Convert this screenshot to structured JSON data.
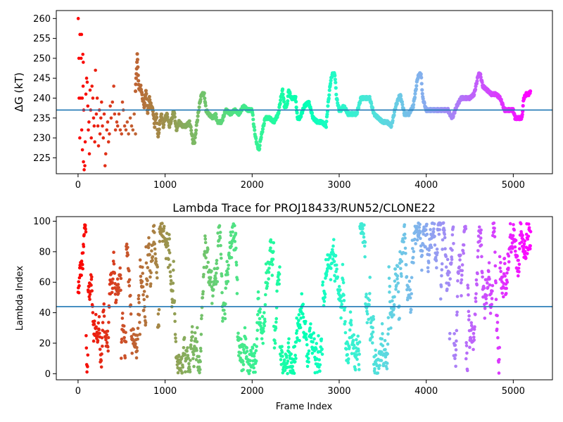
{
  "chart_data": [
    {
      "type": "scatter",
      "title": "",
      "xlabel": "",
      "ylabel": "ΔG (kT)",
      "xlim": [
        -250,
        5450
      ],
      "ylim": [
        221,
        262
      ],
      "xticks": [
        0,
        1000,
        2000,
        3000,
        4000,
        5000
      ],
      "yticks": [
        225,
        230,
        235,
        240,
        245,
        250,
        255,
        260
      ],
      "hline": 237,
      "hline_color": "#1f77b4",
      "colormap": "rainbow",
      "color_order": "reversed_by_frame",
      "grid": false,
      "x_max": 5200,
      "series": [
        {
          "kind": "scattered_points",
          "points": [
            [
              2,
              260
            ],
            [
              22,
              256
            ],
            [
              40,
              256
            ],
            [
              10,
              250
            ],
            [
              35,
              250
            ],
            [
              55,
              251
            ],
            [
              60,
              249
            ],
            [
              12,
              240
            ],
            [
              30,
              240
            ],
            [
              48,
              240
            ],
            [
              58,
              243
            ],
            [
              65,
              237
            ],
            [
              20,
              230
            ],
            [
              42,
              232
            ],
            [
              50,
              227
            ],
            [
              62,
              224
            ],
            [
              70,
              222
            ],
            [
              78,
              223
            ],
            [
              82,
              229
            ],
            [
              90,
              241
            ],
            [
              98,
              245
            ],
            [
              105,
              244
            ],
            [
              112,
              238
            ],
            [
              118,
              232
            ],
            [
              125,
              234
            ],
            [
              130,
              226
            ],
            [
              138,
              242
            ],
            [
              145,
              237
            ],
            [
              152,
              230
            ],
            [
              160,
              243
            ],
            [
              170,
              240
            ],
            [
              178,
              235
            ],
            [
              185,
              233
            ],
            [
              192,
              229
            ],
            [
              200,
              247
            ],
            [
              210,
              236
            ],
            [
              220,
              240
            ],
            [
              228,
              233
            ],
            [
              235,
              228
            ],
            [
              245,
              237
            ],
            [
              252,
              231
            ],
            [
              262,
              235
            ],
            [
              270,
              239
            ],
            [
              280,
              233
            ],
            [
              290,
              230
            ],
            [
              300,
              236
            ],
            [
              310,
              223
            ],
            [
              318,
              226
            ],
            [
              330,
              232
            ],
            [
              340,
              234
            ],
            [
              350,
              229
            ],
            [
              360,
              231
            ],
            [
              370,
              238
            ],
            [
              380,
              235
            ],
            [
              395,
              239
            ],
            [
              410,
              243
            ],
            [
              420,
              236
            ],
            [
              430,
              232
            ],
            [
              445,
              234
            ],
            [
              455,
              233
            ],
            [
              470,
              236
            ],
            [
              485,
              232
            ],
            [
              500,
              231
            ],
            [
              510,
              239
            ],
            [
              520,
              237
            ],
            [
              535,
              233
            ],
            [
              550,
              232
            ],
            [
              565,
              234
            ],
            [
              580,
              231
            ],
            [
              600,
              235
            ],
            [
              615,
              233
            ],
            [
              630,
              232
            ],
            [
              645,
              236
            ],
            [
              660,
              231
            ]
          ]
        },
        {
          "kind": "dense_trace",
          "points": [
            [
              660,
              242
            ],
            [
              670,
              246
            ],
            [
              680,
              251
            ],
            [
              690,
              246
            ],
            [
              700,
              242
            ],
            [
              720,
              243
            ],
            [
              740,
              240
            ],
            [
              760,
              238
            ],
            [
              780,
              242
            ],
            [
              800,
              236
            ],
            [
              820,
              240
            ],
            [
              840,
              238
            ],
            [
              860,
              237
            ],
            [
              880,
              233
            ],
            [
              900,
              236
            ],
            [
              920,
              230
            ],
            [
              940,
              234
            ],
            [
              960,
              236
            ],
            [
              980,
              233
            ],
            [
              1000,
              235
            ],
            [
              1020,
              236
            ],
            [
              1050,
              233
            ],
            [
              1080,
              235
            ],
            [
              1100,
              237
            ],
            [
              1130,
              232
            ],
            [
              1160,
              234
            ],
            [
              1200,
              233
            ],
            [
              1240,
              233
            ],
            [
              1280,
              234
            ],
            [
              1300,
              232
            ],
            [
              1320,
              229
            ],
            [
              1340,
              229
            ],
            [
              1360,
              233
            ],
            [
              1380,
              236
            ],
            [
              1400,
              239
            ],
            [
              1420,
              241
            ],
            [
              1450,
              241
            ],
            [
              1470,
              237
            ],
            [
              1500,
              236
            ],
            [
              1550,
              235
            ],
            [
              1580,
              236
            ],
            [
              1600,
              234
            ],
            [
              1650,
              234
            ],
            [
              1680,
              236
            ],
            [
              1700,
              237
            ],
            [
              1750,
              236
            ],
            [
              1800,
              237
            ],
            [
              1850,
              236
            ],
            [
              1900,
              238
            ],
            [
              1950,
              237
            ],
            [
              2000,
              237
            ],
            [
              2020,
              233
            ],
            [
              2040,
              230
            ],
            [
              2060,
              228
            ],
            [
              2080,
              227
            ],
            [
              2100,
              230
            ],
            [
              2130,
              233
            ],
            [
              2150,
              235
            ],
            [
              2200,
              235
            ],
            [
              2250,
              234
            ],
            [
              2300,
              236
            ],
            [
              2330,
              240
            ],
            [
              2350,
              242
            ],
            [
              2370,
              238
            ],
            [
              2400,
              238
            ],
            [
              2420,
              242
            ],
            [
              2450,
              240
            ],
            [
              2480,
              240
            ],
            [
              2500,
              240
            ],
            [
              2520,
              235
            ],
            [
              2550,
              235
            ],
            [
              2600,
              238
            ],
            [
              2650,
              239
            ],
            [
              2700,
              235
            ],
            [
              2750,
              234
            ],
            [
              2800,
              234
            ],
            [
              2850,
              233
            ],
            [
              2870,
              238
            ],
            [
              2900,
              244
            ],
            [
              2920,
              246
            ],
            [
              2950,
              246
            ],
            [
              2970,
              240
            ],
            [
              3000,
              237
            ],
            [
              3020,
              237
            ],
            [
              3050,
              238
            ],
            [
              3080,
              237
            ],
            [
              3100,
              236
            ],
            [
              3150,
              236
            ],
            [
              3200,
              236
            ],
            [
              3250,
              240
            ],
            [
              3300,
              240
            ],
            [
              3350,
              240
            ],
            [
              3400,
              236
            ],
            [
              3450,
              235
            ],
            [
              3500,
              234
            ],
            [
              3550,
              234
            ],
            [
              3600,
              233
            ],
            [
              3650,
              238
            ],
            [
              3700,
              241
            ],
            [
              3750,
              236
            ],
            [
              3800,
              236
            ],
            [
              3850,
              238
            ],
            [
              3880,
              242
            ],
            [
              3900,
              245
            ],
            [
              3920,
              246
            ],
            [
              3940,
              246
            ],
            [
              3960,
              240
            ],
            [
              4000,
              237
            ],
            [
              4050,
              237
            ],
            [
              4100,
              237
            ],
            [
              4150,
              237
            ],
            [
              4200,
              237
            ],
            [
              4250,
              237
            ],
            [
              4270,
              236
            ],
            [
              4300,
              235
            ],
            [
              4350,
              238
            ],
            [
              4400,
              240
            ],
            [
              4450,
              240
            ],
            [
              4500,
              240
            ],
            [
              4550,
              241
            ],
            [
              4580,
              244
            ],
            [
              4600,
              246
            ],
            [
              4620,
              246
            ],
            [
              4650,
              243
            ],
            [
              4700,
              242
            ],
            [
              4750,
              241
            ],
            [
              4800,
              241
            ],
            [
              4850,
              240
            ],
            [
              4900,
              237
            ],
            [
              4950,
              237
            ],
            [
              5000,
              237
            ],
            [
              5020,
              235
            ],
            [
              5050,
              235
            ],
            [
              5100,
              235
            ],
            [
              5120,
              240
            ],
            [
              5150,
              241
            ],
            [
              5180,
              241
            ],
            [
              5200,
              242
            ]
          ]
        }
      ]
    },
    {
      "type": "scatter",
      "title": "Lambda Trace for PROJ18433/RUN52/CLONE22",
      "xlabel": "Frame Index",
      "ylabel": "Lambda Index",
      "xlim": [
        -250,
        5450
      ],
      "ylim": [
        -4,
        103
      ],
      "xticks": [
        0,
        1000,
        2000,
        3000,
        4000,
        5000
      ],
      "yticks": [
        0,
        20,
        40,
        60,
        80,
        100
      ],
      "hline": 44,
      "hline_color": "#1f77b4",
      "colormap": "rainbow",
      "color_order": "reversed_by_frame",
      "grid": false,
      "x_max": 5200,
      "value_range": [
        0,
        99
      ],
      "density_note": "points fill 0–99 across all frames; band columns visible in right half"
    }
  ]
}
